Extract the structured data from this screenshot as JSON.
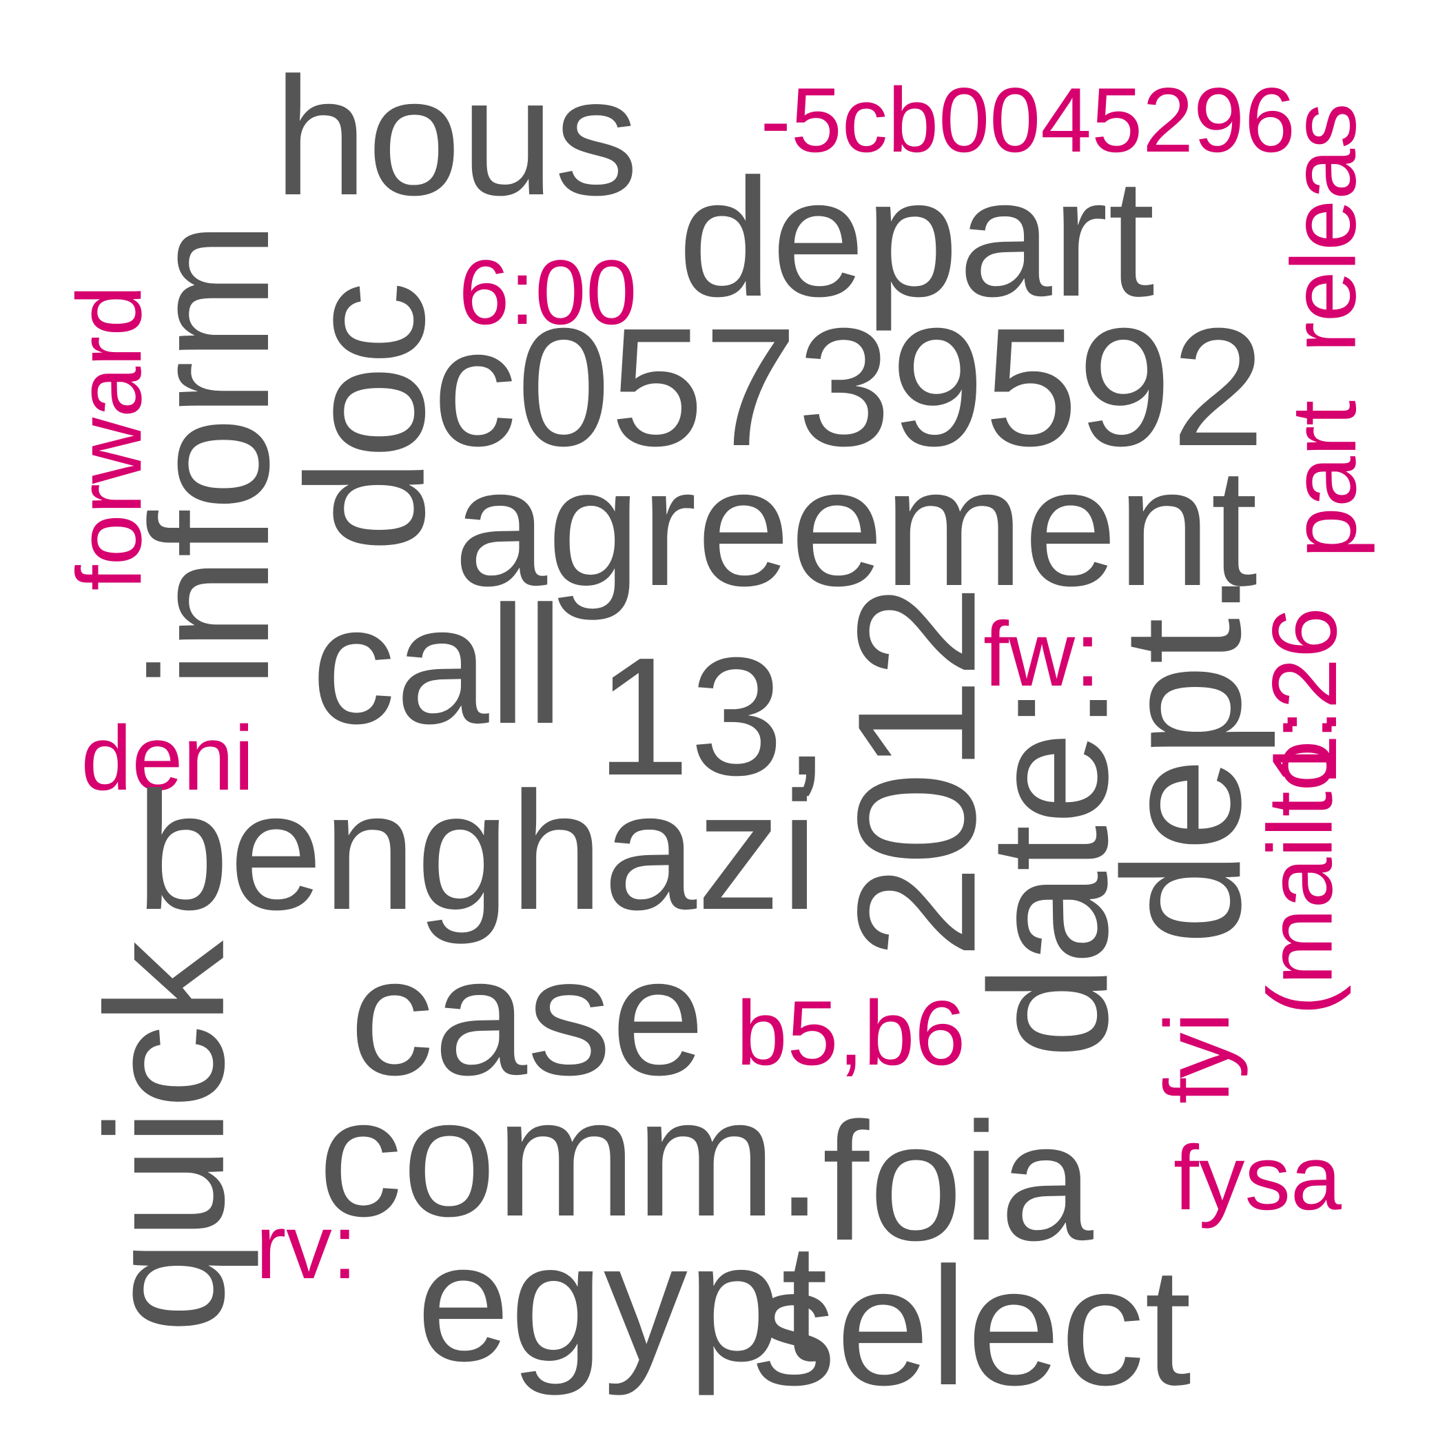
{
  "colors": {
    "primary": "#555555",
    "accent": "#d6006e"
  },
  "words": [
    {
      "text": "hous",
      "color": "primary"
    },
    {
      "text": "-5cb0045296",
      "color": "accent"
    },
    {
      "text": "depart",
      "color": "primary"
    },
    {
      "text": "releas",
      "color": "accent"
    },
    {
      "text": "inform",
      "color": "primary"
    },
    {
      "text": "doc",
      "color": "primary"
    },
    {
      "text": "6:00",
      "color": "accent"
    },
    {
      "text": "c05739592",
      "color": "primary"
    },
    {
      "text": "forward",
      "color": "accent"
    },
    {
      "text": "part",
      "color": "accent"
    },
    {
      "text": "agreement",
      "color": "primary"
    },
    {
      "text": "call",
      "color": "primary"
    },
    {
      "text": "13,",
      "color": "primary"
    },
    {
      "text": "2012",
      "color": "primary"
    },
    {
      "text": "fw:",
      "color": "accent"
    },
    {
      "text": "dept.",
      "color": "primary"
    },
    {
      "text": "1:26",
      "color": "accent"
    },
    {
      "text": "deni",
      "color": "accent"
    },
    {
      "text": "benghazi",
      "color": "primary"
    },
    {
      "text": "date:",
      "color": "primary"
    },
    {
      "text": "(mailto:",
      "color": "accent"
    },
    {
      "text": "quick",
      "color": "primary"
    },
    {
      "text": "case",
      "color": "primary"
    },
    {
      "text": "b5,b6",
      "color": "accent"
    },
    {
      "text": "fyi",
      "color": "accent"
    },
    {
      "text": "comm.",
      "color": "primary"
    },
    {
      "text": "foia",
      "color": "primary"
    },
    {
      "text": "fysa",
      "color": "accent"
    },
    {
      "text": "rv:",
      "color": "accent"
    },
    {
      "text": "egypt",
      "color": "primary"
    },
    {
      "text": "select",
      "color": "primary"
    }
  ]
}
